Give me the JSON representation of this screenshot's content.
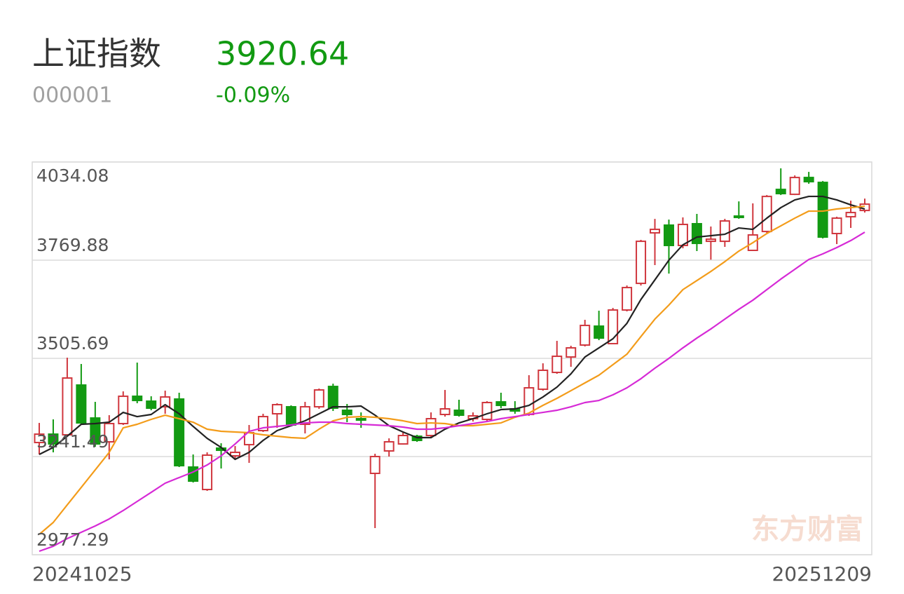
{
  "quote": {
    "name": "上证指数",
    "code": "000001",
    "price": "3920.64",
    "change": "-0.09%"
  },
  "chart_data": {
    "type": "candlestick",
    "watermark": "东方财富",
    "categories": [
      "20241025",
      null,
      null,
      null,
      null,
      null,
      null,
      null,
      null,
      null,
      null,
      null,
      null,
      null,
      null,
      null,
      null,
      null,
      null,
      null,
      null,
      null,
      null,
      null,
      null,
      null,
      null,
      null,
      null,
      null,
      null,
      null,
      null,
      null,
      null,
      null,
      null,
      null,
      null,
      null,
      null,
      null,
      null,
      null,
      null,
      null,
      null,
      null,
      null,
      null,
      null,
      null,
      null,
      null,
      null,
      null,
      null,
      null,
      null,
      "20251209"
    ],
    "open": [
      3279.2,
      3301.8,
      3300.0,
      3433.9,
      3345.2,
      3281.1,
      3330.2,
      3403.7,
      3390.5,
      3375.4,
      3396.2,
      3213.2,
      3152.8,
      3264.1,
      3243.4,
      3273.5,
      3311.3,
      3356.6,
      3375.4,
      3328.3,
      3375.4,
      3430.1,
      3366.0,
      3343.4,
      3196.2,
      3256.6,
      3275.4,
      3296.2,
      3298.1,
      3354.7,
      3366.0,
      3343.4,
      3341.5,
      3388.6,
      3369.8,
      3354.7,
      3422.6,
      3467.9,
      3509.4,
      3541.5,
      3592.4,
      3545.3,
      3635.8,
      3707.5,
      3843.4,
      3864.2,
      3809.5,
      3868.0,
      3820.7,
      3820.7,
      3888.6,
      3796.3,
      3847.1,
      3960.3,
      3947.1,
      3992.4,
      3979.2,
      3841.6,
      3886.8,
      3903.7
    ],
    "high": [
      3332.0,
      3341.5,
      3507.5,
      3490.5,
      3388.6,
      3352.8,
      3416.9,
      3494.3,
      3403.7,
      3418.8,
      3413.2,
      3247.1,
      3252.8,
      3277.3,
      3269.8,
      3326.4,
      3356.6,
      3384.9,
      3379.2,
      3388.6,
      3424.5,
      3437.6,
      3383.0,
      3360.3,
      3249.0,
      3290.5,
      3305.6,
      3300.0,
      3360.3,
      3420.7,
      3394.3,
      3360.3,
      3390.5,
      3413.2,
      3390.5,
      3460.4,
      3492.4,
      3552.8,
      3539.6,
      3609.4,
      3633.9,
      3641.4,
      3701.8,
      3824.5,
      3881.1,
      3879.2,
      3885.0,
      3894.4,
      3860.5,
      3881.1,
      3928.1,
      3922.7,
      3945.2,
      4017.0,
      3998.0,
      4007.5,
      3983.0,
      3886.8,
      3930.0,
      3935.6
    ],
    "low": [
      3247.1,
      3252.8,
      3296.2,
      3328.3,
      3267.9,
      3233.9,
      3326.4,
      3384.9,
      3366.0,
      3356.6,
      3213.2,
      3171.6,
      3149.0,
      3209.3,
      3233.9,
      3224.5,
      3307.5,
      3318.8,
      3322.6,
      3303.7,
      3369.8,
      3364.1,
      3333.9,
      3318.8,
      3049.0,
      3241.5,
      3273.5,
      3281.1,
      3290.5,
      3349.0,
      3349.0,
      3335.8,
      3335.8,
      3371.7,
      3356.6,
      3350.9,
      3418.8,
      3464.1,
      3483.0,
      3537.7,
      3554.7,
      3543.4,
      3632.1,
      3701.8,
      3756.6,
      3733.9,
      3801.9,
      3794.4,
      3771.2,
      3805.7,
      3881.1,
      3794.4,
      3843.4,
      3945.2,
      3945.2,
      3975.4,
      3828.3,
      3813.2,
      3856.7,
      3898.1
    ],
    "close": [
      3301.8,
      3275.4,
      3452.8,
      3332.0,
      3275.4,
      3330.2,
      3403.7,
      3392.4,
      3371.7,
      3401.8,
      3216.9,
      3175.4,
      3245.2,
      3258.4,
      3252.8,
      3305.6,
      3349.0,
      3381.1,
      3326.4,
      3375.4,
      3420.7,
      3371.7,
      3354.7,
      3339.6,
      3241.5,
      3281.1,
      3298.1,
      3284.9,
      3343.4,
      3369.8,
      3352.8,
      3350.9,
      3386.8,
      3379.2,
      3364.1,
      3426.4,
      3473.6,
      3511.3,
      3533.9,
      3594.3,
      3560.3,
      3635.8,
      3696.2,
      3820.7,
      3852.8,
      3809.5,
      3866.1,
      3815.1,
      3826.4,
      3875.4,
      3884.9,
      3837.8,
      3941.4,
      3949.0,
      3992.4,
      3981.1,
      3832.0,
      3883.0,
      3898.1,
      3920.64
    ],
    "up_color": "#d0373e",
    "down_color": "#129a12",
    "series": [
      {
        "color": "#222222",
        "values": [
          3247.1,
          3266.0,
          3296.2,
          3328.3,
          3330.2,
          3333.9,
          3360.3,
          3349.0,
          3354.7,
          3381.1,
          3356.6,
          3322.6,
          3290.5,
          3266.0,
          3233.9,
          3252.8,
          3284.9,
          3311.3,
          3324.5,
          3337.7,
          3356.6,
          3375.4,
          3375.4,
          3377.3,
          3352.8,
          3324.5,
          3307.5,
          3292.4,
          3292.4,
          3315.1,
          3332.0,
          3343.4,
          3356.6,
          3367.9,
          3369.8,
          3379.2,
          3401.8,
          3428.3,
          3464.1,
          3509.4,
          3533.9,
          3558.4,
          3599.9,
          3664.1,
          3716.9,
          3769.8,
          3811.3,
          3832.0,
          3835.8,
          3839.6,
          3856.6,
          3852.8,
          3883.0,
          3911.3,
          3932.1,
          3941.5,
          3941.5,
          3932.1,
          3918.9,
          3907.6
        ]
      },
      {
        "color": "#f39c1a",
        "values": [
          3032.0,
          3064.1,
          3111.3,
          3158.4,
          3205.6,
          3252.8,
          3318.8,
          3328.3,
          3341.5,
          3352.8,
          3343.4,
          3333.9,
          3315.1,
          3309.4,
          3307.5,
          3305.6,
          3300.0,
          3296.2,
          3292.4,
          3290.5,
          3315.1,
          3337.7,
          3347.1,
          3349.0,
          3347.1,
          3343.4,
          3337.7,
          3330.2,
          3332.0,
          3330.2,
          3324.5,
          3324.5,
          3328.3,
          3332.0,
          3347.1,
          3358.5,
          3379.2,
          3398.1,
          3418.8,
          3439.6,
          3460.4,
          3488.7,
          3517.0,
          3564.2,
          3611.3,
          3649.1,
          3690.6,
          3715.1,
          3739.6,
          3766.0,
          3794.4,
          3817.0,
          3841.6,
          3862.3,
          3883.0,
          3901.9,
          3901.9,
          3907.6,
          3911.3,
          3915.1
        ]
      },
      {
        "color": "#d62ad6",
        "values": [
          2986.7,
          3000.0,
          3020.7,
          3037.7,
          3054.7,
          3073.6,
          3096.2,
          3120.7,
          3145.2,
          3169.8,
          3184.9,
          3200.0,
          3218.8,
          3243.4,
          3275.4,
          3309.4,
          3318.8,
          3322.6,
          3326.4,
          3332.0,
          3333.9,
          3333.9,
          3330.2,
          3328.3,
          3326.4,
          3324.5,
          3320.7,
          3315.1,
          3315.1,
          3318.8,
          3324.5,
          3330.2,
          3335.8,
          3343.4,
          3349.0,
          3354.7,
          3360.3,
          3366.0,
          3375.4,
          3386.8,
          3392.4,
          3407.5,
          3426.4,
          3450.9,
          3479.2,
          3505.6,
          3533.9,
          3560.3,
          3584.8,
          3611.3,
          3637.7,
          3662.2,
          3690.6,
          3719.0,
          3745.4,
          3771.8,
          3786.9,
          3803.8,
          3822.7,
          3845.3
        ]
      }
    ],
    "ylim": [
      2977.29,
      4034.08
    ],
    "yticks": [
      4034.08,
      3769.88,
      3505.69,
      3241.49,
      2977.29
    ],
    "grid": true
  }
}
